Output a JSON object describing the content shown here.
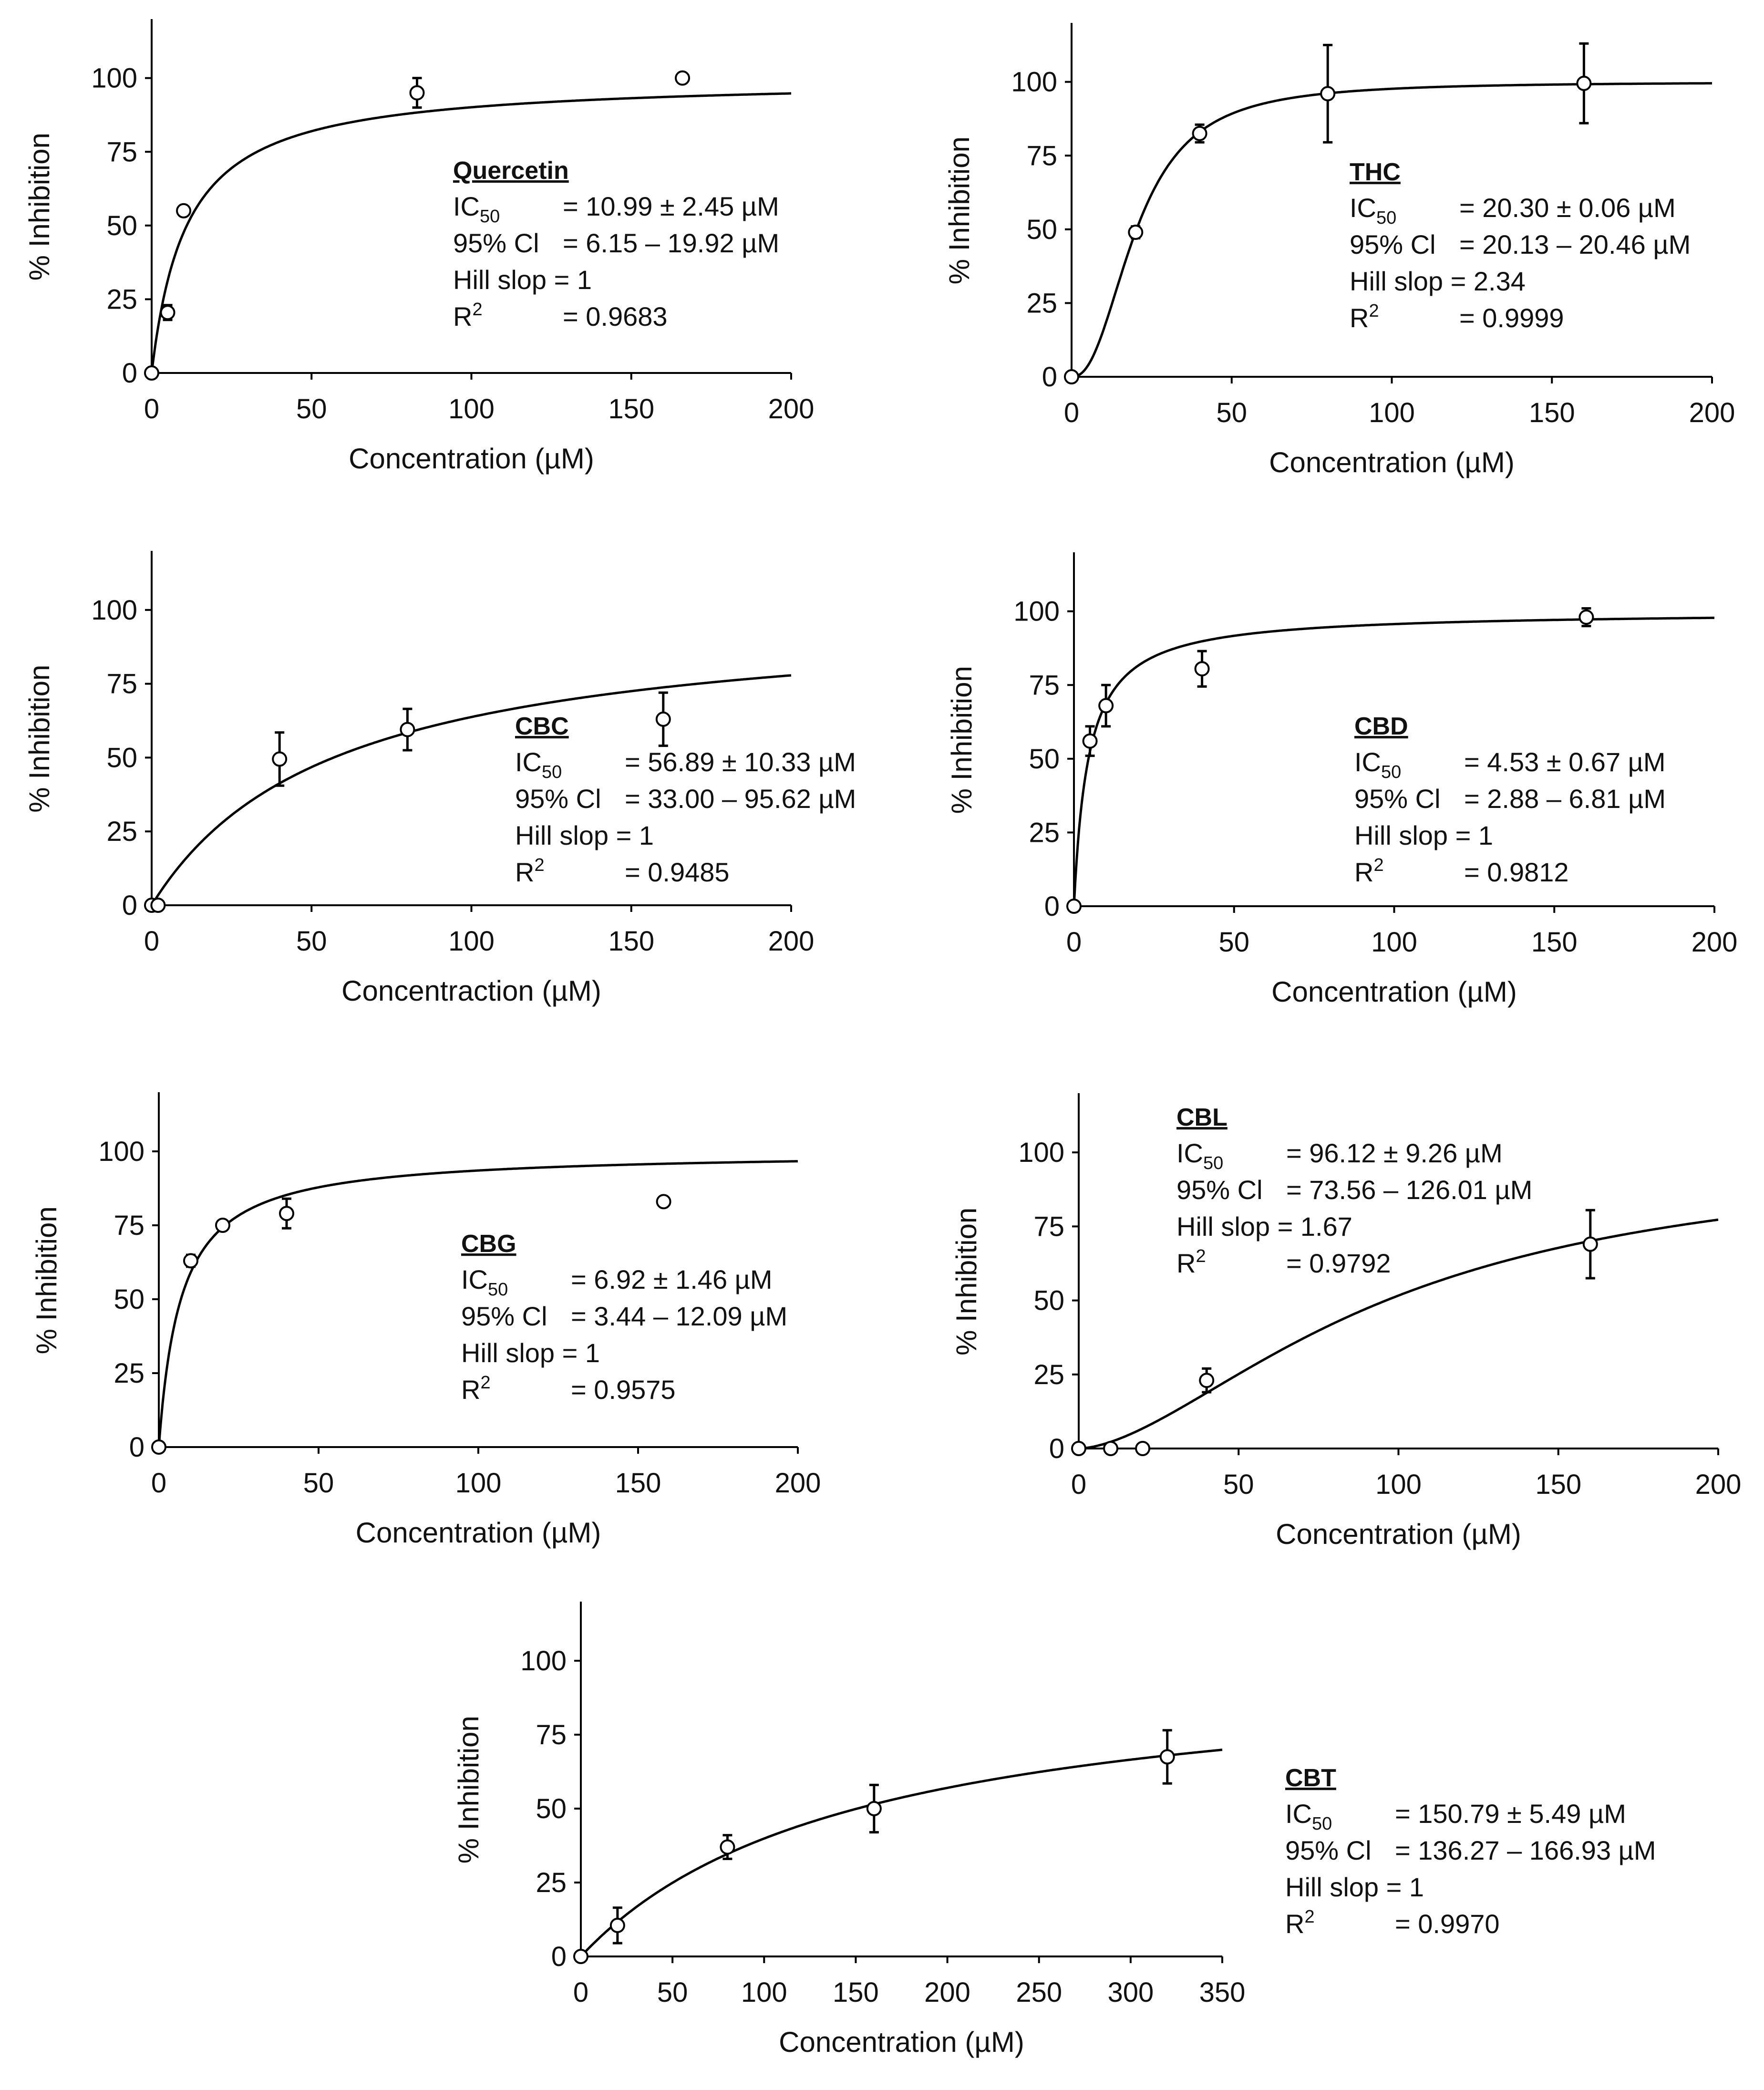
{
  "chart_data": [
    {
      "type": "scatter",
      "compound": "Quercetin",
      "xlabel": "Concentration (µM)",
      "ylabel": "% Inhibition",
      "xlim": [
        0,
        200
      ],
      "ylim": [
        0,
        120
      ],
      "xticks": [
        0,
        50,
        100,
        150,
        200
      ],
      "yticks": [
        0,
        25,
        50,
        75,
        100
      ],
      "points": [
        {
          "x": 0,
          "y": 0,
          "err": 0
        },
        {
          "x": 5,
          "y": 20.5,
          "err": 2.5
        },
        {
          "x": 10,
          "y": 55,
          "err": 0
        },
        {
          "x": 83,
          "y": 95,
          "err": 5
        },
        {
          "x": 166,
          "y": 100,
          "err": 0
        }
      ],
      "fit": {
        "ic50": 10.99,
        "hill": 1,
        "top": 100
      },
      "stats": {
        "ic50_label": "IC",
        "ic50_sub": "50",
        "ic50_value": "= 10.99 ± 2.45 µM",
        "ci_label": "95% Cl",
        "ci_value": "= 6.15 – 19.92 µM",
        "hill_text": "Hill slop = 1",
        "r2_label": "R",
        "r2_sup": "2",
        "r2_value": "= 0.9683"
      }
    },
    {
      "type": "scatter",
      "compound": "THC",
      "xlabel": "Concentration (µM)",
      "ylabel": "% Inhibition",
      "xlim": [
        0,
        200
      ],
      "ylim": [
        0,
        120
      ],
      "xticks": [
        0,
        50,
        100,
        150,
        200
      ],
      "yticks": [
        0,
        25,
        50,
        75,
        100
      ],
      "points": [
        {
          "x": 0,
          "y": 0,
          "err": 0
        },
        {
          "x": 20,
          "y": 49,
          "err": 2
        },
        {
          "x": 40,
          "y": 82.5,
          "err": 3
        },
        {
          "x": 80,
          "y": 96,
          "err": 16.5
        },
        {
          "x": 160,
          "y": 99.5,
          "err": 13.5
        }
      ],
      "fit": {
        "ic50": 20.3,
        "hill": 2.34,
        "top": 100
      },
      "stats": {
        "ic50_label": "IC",
        "ic50_sub": "50",
        "ic50_value": "= 20.30 ± 0.06 µM",
        "ci_label": "95% Cl",
        "ci_value": "= 20.13 – 20.46 µM",
        "hill_text": "Hill slop = 2.34",
        "r2_label": "R",
        "r2_sup": "2",
        "r2_value": "= 0.9999"
      }
    },
    {
      "type": "scatter",
      "compound": "CBC",
      "xlabel": "Concentraction (µM)",
      "ylabel": "% Inhibition",
      "xlim": [
        0,
        200
      ],
      "ylim": [
        0,
        120
      ],
      "xticks": [
        0,
        50,
        100,
        150,
        200
      ],
      "yticks": [
        0,
        25,
        50,
        75,
        100
      ],
      "points": [
        {
          "x": 0,
          "y": 0,
          "err": 0
        },
        {
          "x": 2,
          "y": 0,
          "err": 0
        },
        {
          "x": 40,
          "y": 49.5,
          "err": 9
        },
        {
          "x": 80,
          "y": 59.5,
          "err": 7
        },
        {
          "x": 160,
          "y": 63,
          "err": 9
        }
      ],
      "fit": {
        "ic50": 56.89,
        "hill": 1,
        "top": 100
      },
      "stats": {
        "ic50_label": "IC",
        "ic50_sub": "50",
        "ic50_value": "= 56.89 ± 10.33 µM",
        "ci_label": "95% Cl",
        "ci_value": "= 33.00 – 95.62 µM",
        "hill_text": "Hill slop = 1",
        "r2_label": "R",
        "r2_sup": "2",
        "r2_value": "= 0.9485"
      }
    },
    {
      "type": "scatter",
      "compound": "CBD",
      "xlabel": "Concentration (µM)",
      "ylabel": "% Inhibition",
      "xlim": [
        0,
        200
      ],
      "ylim": [
        0,
        120
      ],
      "xticks": [
        0,
        50,
        100,
        150,
        200
      ],
      "yticks": [
        0,
        25,
        50,
        75,
        100
      ],
      "points": [
        {
          "x": 0,
          "y": 0,
          "err": 0
        },
        {
          "x": 5,
          "y": 56,
          "err": 5
        },
        {
          "x": 10,
          "y": 68,
          "err": 7
        },
        {
          "x": 40,
          "y": 80.5,
          "err": 6
        },
        {
          "x": 160,
          "y": 98,
          "err": 3
        }
      ],
      "fit": {
        "ic50": 4.53,
        "hill": 1,
        "top": 100
      },
      "stats": {
        "ic50_label": "IC",
        "ic50_sub": "50",
        "ic50_value": "= 4.53 ± 0.67 µM",
        "ci_label": "95% Cl",
        "ci_value": "= 2.88 – 6.81 µM",
        "hill_text": "Hill slop = 1",
        "r2_label": "R",
        "r2_sup": "2",
        "r2_value": "= 0.9812"
      }
    },
    {
      "type": "scatter",
      "compound": "CBG",
      "xlabel": "Concentration (µM)",
      "ylabel": "% Inhibition",
      "xlim": [
        0,
        200
      ],
      "ylim": [
        0,
        120
      ],
      "xticks": [
        0,
        50,
        100,
        150,
        200
      ],
      "yticks": [
        0,
        25,
        50,
        75,
        100
      ],
      "points": [
        {
          "x": 0,
          "y": 0,
          "err": 0
        },
        {
          "x": 10,
          "y": 63,
          "err": 2
        },
        {
          "x": 20,
          "y": 75,
          "err": 1
        },
        {
          "x": 40,
          "y": 79,
          "err": 5
        },
        {
          "x": 158,
          "y": 83,
          "err": 0
        }
      ],
      "fit": {
        "ic50": 6.92,
        "hill": 1,
        "top": 100
      },
      "stats": {
        "ic50_label": "IC",
        "ic50_sub": "50",
        "ic50_value": "= 6.92 ± 1.46 µM",
        "ci_label": "95% Cl",
        "ci_value": "= 3.44 – 12.09 µM",
        "hill_text": "Hill slop = 1",
        "r2_label": "R",
        "r2_sup": "2",
        "r2_value": "= 0.9575"
      }
    },
    {
      "type": "scatter",
      "compound": "CBL",
      "xlabel": "Concentration (µM)",
      "ylabel": "% Inhibition",
      "xlim": [
        0,
        200
      ],
      "ylim": [
        0,
        120
      ],
      "xticks": [
        0,
        50,
        100,
        150,
        200
      ],
      "yticks": [
        0,
        25,
        50,
        75,
        100
      ],
      "points": [
        {
          "x": 0,
          "y": 0,
          "err": 0
        },
        {
          "x": 10,
          "y": 0,
          "err": 0
        },
        {
          "x": 20,
          "y": 0,
          "err": 0
        },
        {
          "x": 40,
          "y": 23,
          "err": 4
        },
        {
          "x": 160,
          "y": 69,
          "err": 11.5
        }
      ],
      "fit": {
        "ic50": 96.12,
        "hill": 1.67,
        "top": 100
      },
      "stats": {
        "ic50_label": "IC",
        "ic50_sub": "50",
        "ic50_value": "= 96.12 ± 9.26 µM",
        "ci_label": "95% Cl",
        "ci_value": "= 73.56 – 126.01 µM",
        "hill_text": "Hill slop = 1.67",
        "r2_label": "R",
        "r2_sup": "2",
        "r2_value": "= 0.9792"
      }
    },
    {
      "type": "scatter",
      "compound": "CBT",
      "xlabel": "Concentration (µM)",
      "ylabel": "% Inhibition",
      "xlim": [
        0,
        350
      ],
      "ylim": [
        0,
        120
      ],
      "xticks": [
        0,
        50,
        100,
        150,
        200,
        250,
        300,
        350
      ],
      "yticks": [
        0,
        25,
        50,
        75,
        100
      ],
      "points": [
        {
          "x": 0,
          "y": 0,
          "err": 0
        },
        {
          "x": 20,
          "y": 10.5,
          "err": 6
        },
        {
          "x": 80,
          "y": 37,
          "err": 4
        },
        {
          "x": 160,
          "y": 50,
          "err": 8
        },
        {
          "x": 320,
          "y": 67.5,
          "err": 9
        }
      ],
      "fit": {
        "ic50": 150.79,
        "hill": 1,
        "top": 100
      },
      "stats": {
        "ic50_label": "IC",
        "ic50_sub": "50",
        "ic50_value": "= 150.79 ± 5.49 µM",
        "ci_label": "95% Cl",
        "ci_value": "= 136.27 – 166.93 µM",
        "hill_text": "Hill slop = 1",
        "r2_label": "R",
        "r2_sup": "2",
        "r2_value": "= 0.9970"
      }
    }
  ]
}
